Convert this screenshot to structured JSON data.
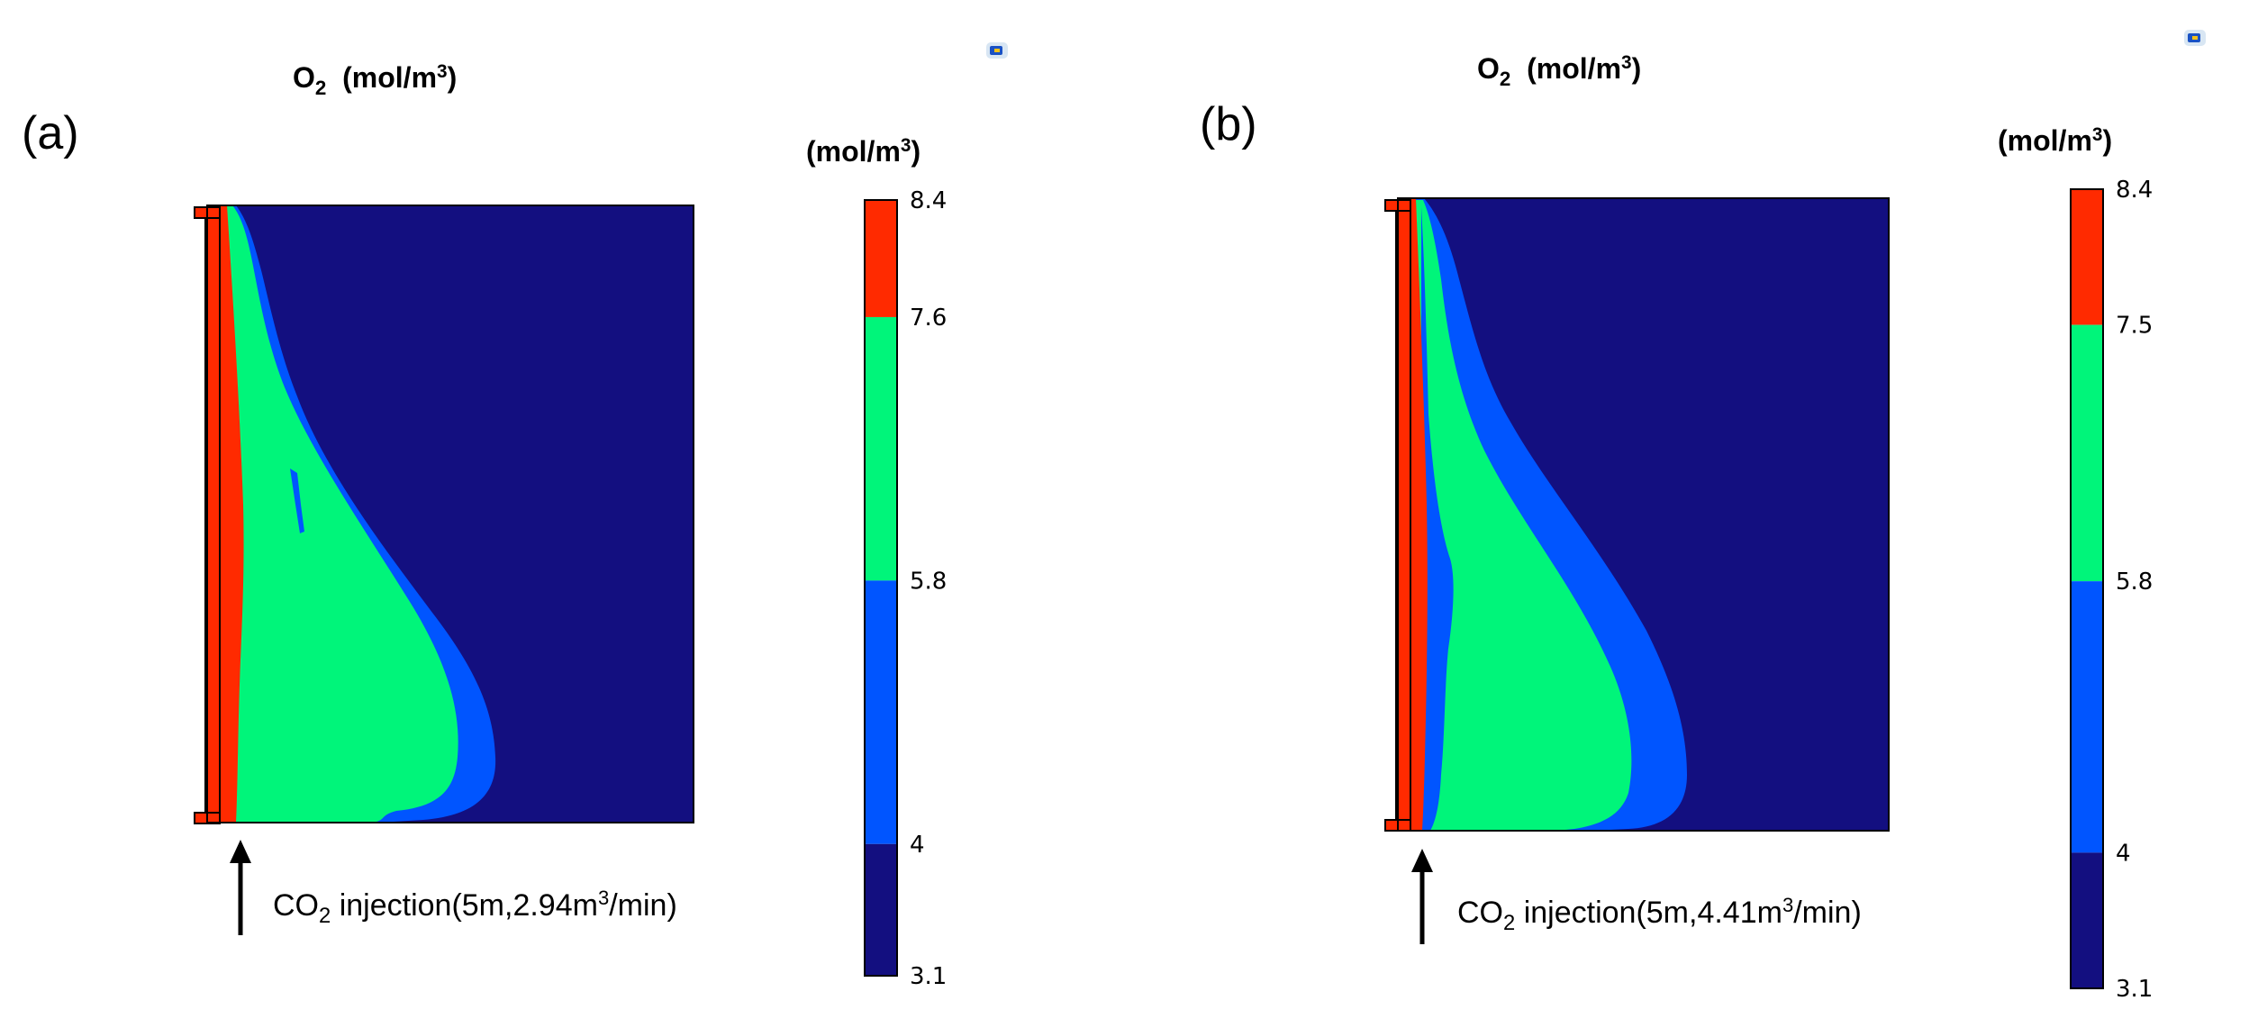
{
  "colors": {
    "band_4": "#ff2a00",
    "band_3": "#00f57a",
    "band_2": "#0055ff",
    "band_1": "#130f80",
    "frame": "#000000"
  },
  "icons": [
    "comsol-logo-icon"
  ],
  "chart_data": [
    {
      "type": "heatmap",
      "panel_label": "(a)",
      "title_main": "O",
      "title_sub": "2",
      "title_unit_prefix": "  (mol/m",
      "title_unit_sup": "3",
      "title_unit_suffix": ")",
      "colorbar_label_prefix": "(mol/m",
      "colorbar_label_sup": "3",
      "colorbar_label_suffix": ")",
      "colorbar_ticks": [
        "8.4",
        "7.6",
        "5.8",
        "4",
        "3.1"
      ],
      "colorbar_levels": [
        8.4,
        7.6,
        5.8,
        4,
        3.1
      ],
      "range": [
        3.1,
        8.4
      ],
      "annotation": {
        "prefix": "CO",
        "sub": "2",
        "middle": " injection(5m,2.94m",
        "sup": "3",
        "suffix": "/min)"
      }
    },
    {
      "type": "heatmap",
      "panel_label": "(b)",
      "title_main": "O",
      "title_sub": "2",
      "title_unit_prefix": "  (mol/m",
      "title_unit_sup": "3",
      "title_unit_suffix": ")",
      "colorbar_label_prefix": "(mol/m",
      "colorbar_label_sup": "3",
      "colorbar_label_suffix": ")",
      "colorbar_ticks": [
        "8.4",
        "7.5",
        "5.8",
        "4",
        "3.1"
      ],
      "colorbar_levels": [
        8.4,
        7.5,
        5.8,
        4,
        3.1
      ],
      "range": [
        3.1,
        8.4
      ],
      "annotation": {
        "prefix": "CO",
        "sub": "2",
        "middle": " injection(5m,4.41m",
        "sup": "3",
        "suffix": "/min)"
      }
    }
  ]
}
